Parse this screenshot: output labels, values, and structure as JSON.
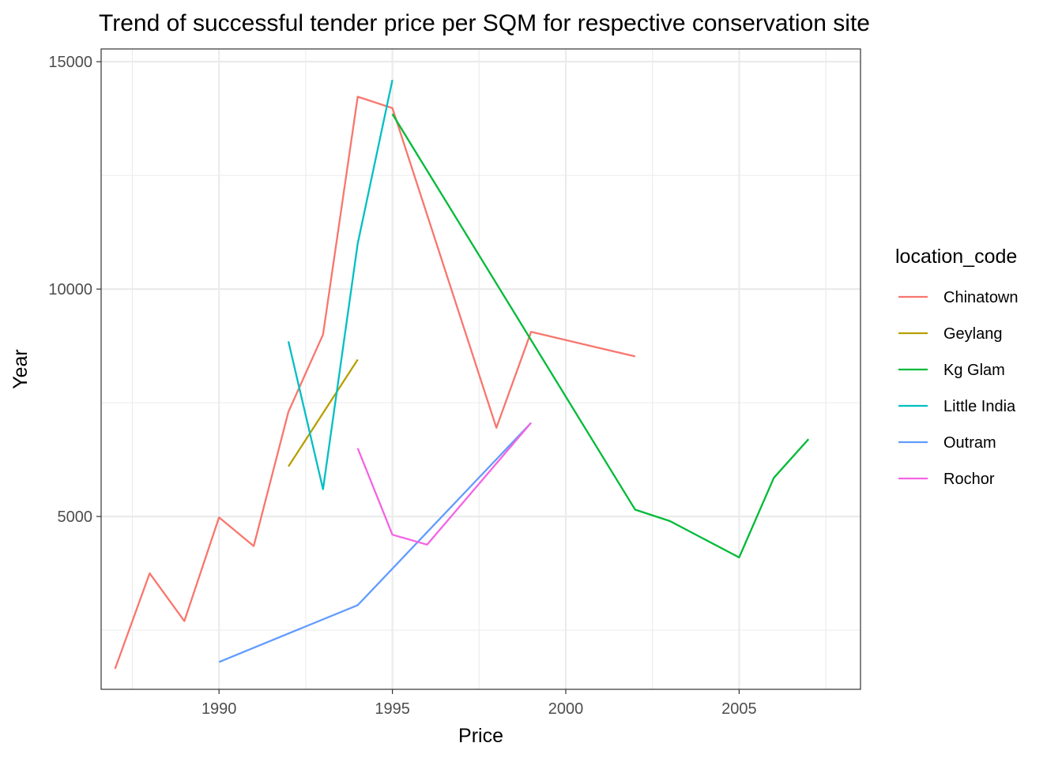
{
  "chart_data": {
    "type": "line",
    "title": "Trend of successful tender price per SQM for respective conservation site",
    "xlabel": "Price",
    "ylabel": "Year",
    "xlim": [
      1986.6,
      2008.5
    ],
    "ylim": [
      1200,
      15280
    ],
    "x_ticks": [
      1990,
      1995,
      2000,
      2005
    ],
    "x_minor_ticks": [
      1987.5,
      1992.5,
      1997.5,
      2002.5,
      2007.5
    ],
    "y_ticks": [
      5000,
      10000,
      15000
    ],
    "y_minor_ticks": [
      2500,
      7500,
      12500
    ],
    "grid": true,
    "legend": {
      "title": "location_code",
      "position": "right"
    },
    "series": [
      {
        "name": "Chinatown",
        "color": "#F8766D",
        "points": [
          [
            1987,
            1650
          ],
          [
            1988,
            3750
          ],
          [
            1989,
            2700
          ],
          [
            1990,
            4980
          ],
          [
            1991,
            4350
          ],
          [
            1992,
            7300
          ],
          [
            1993,
            9000
          ],
          [
            1994,
            14230
          ],
          [
            1995,
            13980
          ],
          [
            1998,
            6950
          ],
          [
            1999,
            9060
          ],
          [
            2002,
            8520
          ]
        ]
      },
      {
        "name": "Geylang",
        "color": "#B79F00",
        "points": [
          [
            1992,
            6100
          ],
          [
            1994,
            8450
          ]
        ]
      },
      {
        "name": "Kg Glam",
        "color": "#00BA38",
        "points": [
          [
            1995,
            13850
          ],
          [
            2002,
            5150
          ],
          [
            2003,
            4900
          ],
          [
            2005,
            4100
          ],
          [
            2006,
            5850
          ],
          [
            2007,
            6700
          ]
        ]
      },
      {
        "name": "Little India",
        "color": "#00BFC4",
        "points": [
          [
            1992,
            8850
          ],
          [
            1993,
            5600
          ],
          [
            1994,
            11000
          ],
          [
            1995,
            14600
          ]
        ]
      },
      {
        "name": "Outram",
        "color": "#619CFF",
        "points": [
          [
            1990,
            1800
          ],
          [
            1994,
            3050
          ],
          [
            1999,
            7060
          ]
        ]
      },
      {
        "name": "Rochor",
        "color": "#F564E3",
        "points": [
          [
            1994,
            6500
          ],
          [
            1995,
            4600
          ],
          [
            1996,
            4380
          ],
          [
            1999,
            7060
          ]
        ]
      }
    ]
  }
}
